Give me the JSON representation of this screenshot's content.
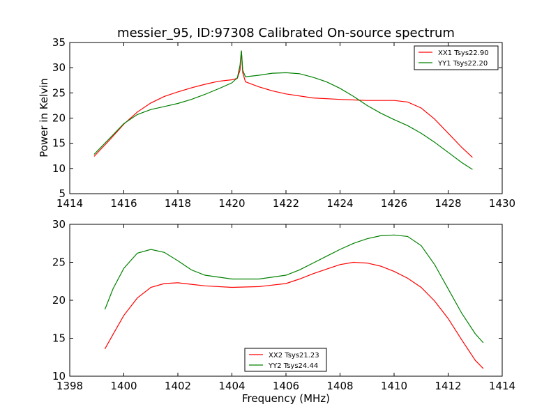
{
  "chart_data": [
    {
      "type": "line",
      "title": "messier_95, ID:97308 Calibrated On-source spectrum",
      "xlabel": "",
      "ylabel": "Power in Kelvin",
      "xlim": [
        1414,
        1430
      ],
      "ylim": [
        5,
        35
      ],
      "xticks": [
        1414,
        1416,
        1418,
        1420,
        1422,
        1424,
        1426,
        1428,
        1430
      ],
      "yticks": [
        5,
        10,
        15,
        20,
        25,
        30,
        35
      ],
      "grid": false,
      "legend_position": "top-right",
      "series": [
        {
          "name": "XX1 Tsys22.90",
          "color": "#ff0000",
          "x": [
            1414.9,
            1415.5,
            1416.0,
            1416.5,
            1417.0,
            1417.5,
            1418.0,
            1418.5,
            1419.0,
            1419.5,
            1420.0,
            1420.2,
            1420.3,
            1420.35,
            1420.4,
            1420.5,
            1421.0,
            1421.5,
            1422.0,
            1423.0,
            1424.0,
            1425.0,
            1426.0,
            1426.5,
            1427.0,
            1427.5,
            1428.0,
            1428.5,
            1428.9
          ],
          "y": [
            12.4,
            15.8,
            18.8,
            21.2,
            23.0,
            24.3,
            25.2,
            26.0,
            26.7,
            27.3,
            27.6,
            27.9,
            29.5,
            33.3,
            29.0,
            27.2,
            26.2,
            25.4,
            24.8,
            24.0,
            23.7,
            23.5,
            23.5,
            23.2,
            22.0,
            19.8,
            17.0,
            14.2,
            12.2
          ]
        },
        {
          "name": "YY1 Tsys22.20",
          "color": "#008000",
          "x": [
            1414.9,
            1415.5,
            1416.0,
            1416.5,
            1417.0,
            1417.5,
            1418.0,
            1418.5,
            1419.0,
            1419.5,
            1420.0,
            1420.2,
            1420.3,
            1420.35,
            1420.4,
            1420.5,
            1421.0,
            1421.5,
            1422.0,
            1422.5,
            1423.0,
            1423.5,
            1424.0,
            1424.5,
            1425.0,
            1425.5,
            1426.0,
            1426.5,
            1427.0,
            1427.5,
            1428.0,
            1428.5,
            1428.9
          ],
          "y": [
            12.8,
            16.1,
            18.9,
            20.7,
            21.7,
            22.3,
            22.9,
            23.7,
            24.7,
            25.8,
            27.0,
            28.0,
            30.5,
            33.4,
            29.5,
            28.2,
            28.5,
            28.9,
            29.0,
            28.8,
            28.1,
            27.2,
            25.9,
            24.3,
            22.5,
            21.0,
            19.7,
            18.5,
            17.0,
            15.2,
            13.2,
            11.2,
            9.8
          ]
        }
      ]
    },
    {
      "type": "line",
      "title": "",
      "xlabel": "Frequency (MHz)",
      "ylabel": "",
      "xlim": [
        1398,
        1414
      ],
      "ylim": [
        10,
        30
      ],
      "xticks": [
        1398,
        1400,
        1402,
        1404,
        1406,
        1408,
        1410,
        1412,
        1414
      ],
      "yticks": [
        10,
        15,
        20,
        25,
        30
      ],
      "grid": false,
      "legend_position": "bottom-center",
      "series": [
        {
          "name": "XX2 Tsys21.23",
          "color": "#ff0000",
          "x": [
            1399.3,
            1399.6,
            1400.0,
            1400.5,
            1401.0,
            1401.5,
            1402.0,
            1402.5,
            1403.0,
            1404.0,
            1405.0,
            1406.0,
            1406.5,
            1407.0,
            1407.5,
            1408.0,
            1408.5,
            1409.0,
            1409.5,
            1410.0,
            1410.5,
            1411.0,
            1411.5,
            1412.0,
            1412.5,
            1413.0,
            1413.3
          ],
          "y": [
            13.6,
            15.5,
            18.0,
            20.3,
            21.7,
            22.2,
            22.3,
            22.1,
            21.9,
            21.7,
            21.8,
            22.2,
            22.8,
            23.5,
            24.1,
            24.7,
            25.0,
            24.9,
            24.5,
            23.8,
            22.9,
            21.7,
            19.9,
            17.6,
            14.8,
            12.1,
            11.0
          ]
        },
        {
          "name": "YY2 Tsys24.44",
          "color": "#008000",
          "x": [
            1399.3,
            1399.6,
            1400.0,
            1400.5,
            1401.0,
            1401.5,
            1402.0,
            1402.5,
            1403.0,
            1404.0,
            1405.0,
            1406.0,
            1406.5,
            1407.0,
            1407.5,
            1408.0,
            1408.5,
            1409.0,
            1409.5,
            1410.0,
            1410.5,
            1411.0,
            1411.5,
            1412.0,
            1412.5,
            1413.0,
            1413.3
          ],
          "y": [
            18.8,
            21.5,
            24.2,
            26.2,
            26.7,
            26.3,
            25.2,
            24.0,
            23.3,
            22.8,
            22.8,
            23.3,
            24.0,
            24.9,
            25.8,
            26.7,
            27.5,
            28.1,
            28.5,
            28.6,
            28.4,
            27.2,
            24.7,
            21.5,
            18.3,
            15.6,
            14.4
          ]
        }
      ]
    }
  ]
}
